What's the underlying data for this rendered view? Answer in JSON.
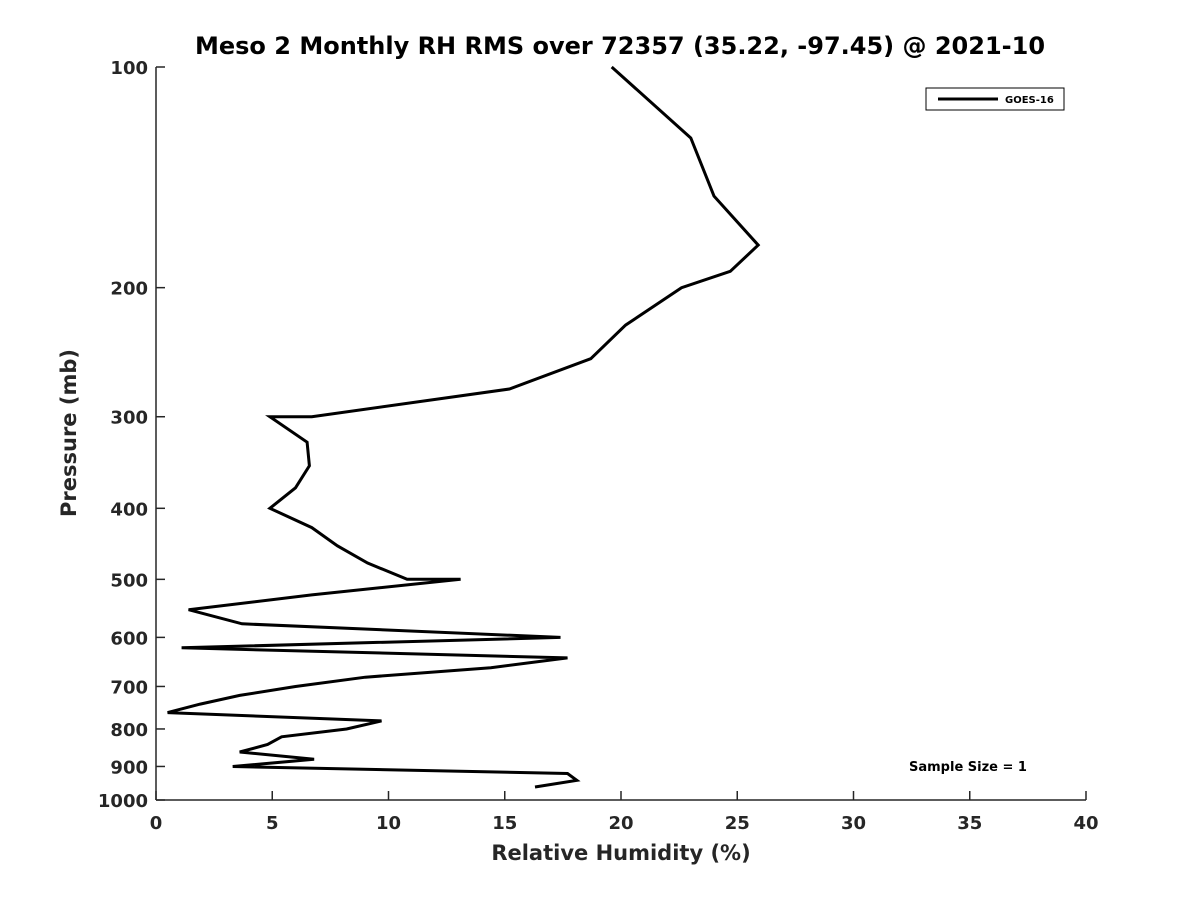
{
  "chart_data": {
    "type": "line",
    "title": "Meso 2 Monthly RH RMS over 72357 (35.22, -97.45) @ 2021-10",
    "xlabel": "Relative Humidity (%)",
    "ylabel": "Pressure (mb)",
    "xlim": [
      0,
      40
    ],
    "ylim": [
      100,
      1000
    ],
    "yscale": "log",
    "y_reversed": true,
    "xticks": [
      0,
      5,
      10,
      15,
      20,
      25,
      30,
      35,
      40
    ],
    "yticks": [
      100,
      200,
      300,
      400,
      500,
      600,
      700,
      800,
      900,
      1000
    ],
    "grid": false,
    "legend": {
      "position": "top-right",
      "entries": [
        "GOES-16"
      ]
    },
    "annotation": "Sample Size = 1",
    "series": [
      {
        "name": "GOES-16",
        "color": "#000000",
        "x": [
          19.6,
          23.0,
          24.0,
          25.9,
          24.7,
          22.6,
          20.2,
          18.7,
          15.2,
          6.7,
          4.9,
          6.5,
          6.6,
          6.0,
          4.9,
          6.7,
          7.8,
          9.1,
          10.8,
          13.1,
          6.7,
          1.4,
          3.7,
          17.4,
          1.1,
          17.7,
          14.4,
          9.0,
          6.0,
          3.6,
          1.9,
          0.5,
          9.7,
          8.2,
          5.4,
          4.8,
          3.6,
          6.8,
          3.3,
          17.7,
          18.1,
          16.3
        ],
        "y": [
          100,
          125,
          150,
          175,
          190,
          200,
          225,
          250,
          275,
          300,
          300,
          325,
          350,
          375,
          400,
          425,
          450,
          475,
          500,
          500,
          525,
          550,
          575,
          600,
          620,
          640,
          660,
          680,
          700,
          720,
          740,
          760,
          780,
          800,
          820,
          840,
          860,
          880,
          900,
          920,
          940,
          960
        ]
      }
    ]
  }
}
